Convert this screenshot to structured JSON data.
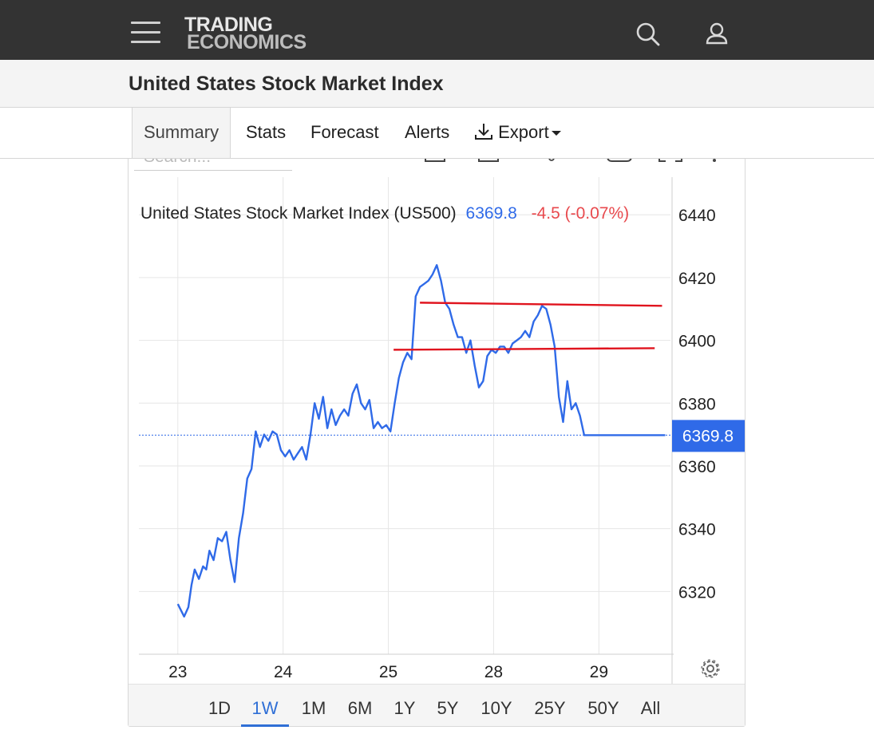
{
  "header": {
    "logo_line1": "TRADING",
    "logo_line2": "ECONOMICS",
    "menu_icon": "hamburger-menu-icon",
    "search_icon": "search-icon",
    "user_icon": "user-icon"
  },
  "page": {
    "title": "United States Stock Market Index"
  },
  "tabs": [
    {
      "label": "Summary",
      "active": true
    },
    {
      "label": "Stats"
    },
    {
      "label": "Forecast"
    },
    {
      "label": "Alerts"
    },
    {
      "label": "Export",
      "icon": "download-icon"
    }
  ],
  "toolbar": {
    "search_placeholder": "Search..."
  },
  "colors": {
    "line": "#2f6ae8",
    "trendline": "#e0141e",
    "price_badge": "#2f6ae8",
    "change_negative": "#e8494d"
  },
  "chart_data": {
    "type": "line",
    "legend": {
      "name": "United States Stock Market Index (US500)",
      "last": "6369.8",
      "change": "-4.5 (-0.07%)"
    },
    "last_value": 6369.8,
    "last_label": "6369.8",
    "ylim": [
      6300,
      6452
    ],
    "yticks": [
      6440,
      6420,
      6400,
      6380,
      6360,
      6340,
      6320
    ],
    "xticks": [
      "23",
      "24",
      "25",
      "28",
      "29"
    ],
    "grid": true,
    "series": [
      {
        "x": [
          0,
          0.06,
          0.1,
          0.13,
          0.16,
          0.2,
          0.24,
          0.27,
          0.3,
          0.34,
          0.38,
          0.42,
          0.46,
          0.5,
          0.54,
          0.58,
          0.62,
          0.66,
          0.7,
          0.74,
          0.78,
          0.82,
          0.86,
          0.9,
          0.94,
          0.98,
          1.02,
          1.06,
          1.1,
          1.14,
          1.18,
          1.22,
          1.26,
          1.3,
          1.34,
          1.38,
          1.42,
          1.46,
          1.5,
          1.54,
          1.58,
          1.62,
          1.66,
          1.7,
          1.74,
          1.78,
          1.82,
          1.86,
          1.9,
          1.94,
          1.98,
          2.02,
          2.06,
          2.1,
          2.14,
          2.18,
          2.22,
          2.26,
          2.3,
          2.34,
          2.38,
          2.42,
          2.46,
          2.5,
          2.54,
          2.58,
          2.62,
          2.66,
          2.7,
          2.74,
          2.78,
          2.82,
          2.86,
          2.9,
          2.94,
          2.98,
          3.02,
          3.06,
          3.1,
          3.14,
          3.18,
          3.22,
          3.26,
          3.3,
          3.34,
          3.38,
          3.42,
          3.46,
          3.5,
          3.54,
          3.58,
          3.62,
          3.66,
          3.7,
          3.74,
          3.78,
          3.82,
          3.86,
          3.9,
          3.94,
          3.98,
          4.02,
          4.06,
          4.1,
          4.14,
          4.18,
          4.22,
          4.26,
          4.3,
          4.34,
          4.38,
          4.42,
          4.46,
          4.5,
          4.54,
          4.58,
          4.62,
          4.66,
          4.7
        ],
        "y": [
          6316,
          6312,
          6315,
          6322,
          6327,
          6324,
          6328,
          6327,
          6333,
          6330,
          6337,
          6336,
          6339,
          6330,
          6323,
          6337,
          6345,
          6356,
          6359,
          6371,
          6366,
          6370,
          6368,
          6371,
          6370,
          6365,
          6363,
          6365,
          6362,
          6364,
          6366,
          6362,
          6370,
          6380,
          6375,
          6382,
          6372,
          6378,
          6373,
          6376,
          6378,
          6376,
          6383,
          6386,
          6380,
          6378,
          6381,
          6372,
          6374,
          6372,
          6373,
          6371,
          6380,
          6388,
          6393,
          6396,
          6394,
          6414,
          6417,
          6418,
          6419,
          6421,
          6424,
          6419,
          6412,
          6410,
          6405,
          6401,
          6401,
          6396,
          6400,
          6392,
          6385,
          6387,
          6395,
          6397,
          6396,
          6398,
          6398,
          6396,
          6399,
          6400,
          6401,
          6403,
          6401,
          6406,
          6408,
          6411,
          6410,
          6405,
          6398,
          6382,
          6374,
          6387,
          6378,
          6380,
          6376,
          6369.8,
          6369.8,
          6369.8,
          6369.8,
          6369.8,
          6369.8,
          6369.8,
          6369.8,
          6369.8,
          6369.8,
          6369.8,
          6369.8,
          6369.8,
          6369.8,
          6369.8,
          6369.8,
          6369.8,
          6369.8,
          6369.8,
          6369.8,
          6369.8,
          6369.8
        ]
      }
    ],
    "trendlines": [
      {
        "x": [
          2.3,
          4.6
        ],
        "y": [
          6412,
          6411
        ]
      },
      {
        "x": [
          2.05,
          4.53
        ],
        "y": [
          6397,
          6397.5
        ]
      }
    ],
    "xlim": [
      -0.37,
      4.68
    ]
  },
  "ranges": [
    "1D",
    "1W",
    "1M",
    "6M",
    "1Y",
    "5Y",
    "10Y",
    "25Y",
    "50Y",
    "All"
  ],
  "active_range": "1W",
  "settings_icon": "gear-icon"
}
